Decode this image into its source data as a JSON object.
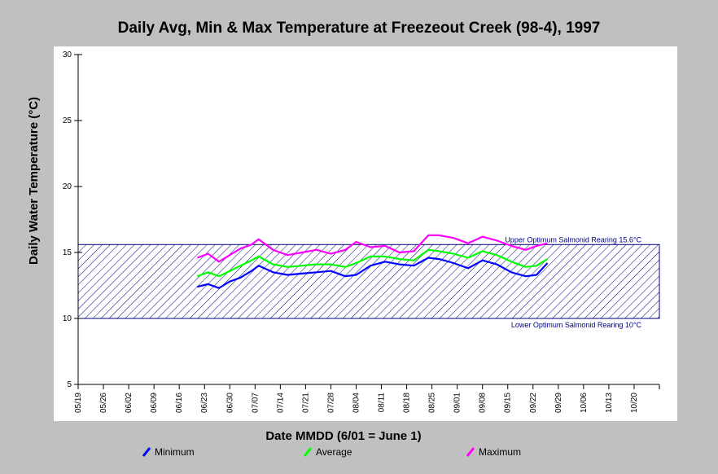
{
  "chart_data": {
    "type": "line",
    "title": "Daily Avg, Min & Max Temperature at Freezeout Creek (98-4), 1997",
    "xlabel": "Date MMDD (6/01 = June 1)",
    "ylabel": "Daily Water Temperature (°C)",
    "ylim": [
      5,
      30
    ],
    "yticks": [
      5,
      10,
      15,
      20,
      25,
      30
    ],
    "xlim": [
      "05/19",
      "10/27"
    ],
    "xticks": [
      "05/19",
      "05/26",
      "06/02",
      "06/09",
      "06/16",
      "06/23",
      "06/30",
      "07/07",
      "07/14",
      "07/21",
      "07/28",
      "08/04",
      "08/11",
      "08/18",
      "08/25",
      "09/01",
      "09/08",
      "09/15",
      "09/22",
      "09/29",
      "10/06",
      "10/13",
      "10/20"
    ],
    "legend_position": "bottom",
    "reference_band": {
      "upper": 15.6,
      "lower": 10,
      "upper_label": "Upper Optimum Salmonid Rearing 15.6°C",
      "lower_label": "Lower Optimum Salmonid Rearing 10°C",
      "color": "#000080"
    },
    "x": [
      "06/21",
      "06/24",
      "06/27",
      "06/30",
      "07/03",
      "07/06",
      "07/08",
      "07/12",
      "07/16",
      "07/20",
      "07/24",
      "07/28",
      "08/01",
      "08/04",
      "08/08",
      "08/12",
      "08/16",
      "08/20",
      "08/24",
      "08/27",
      "08/31",
      "09/04",
      "09/08",
      "09/12",
      "09/16",
      "09/20",
      "09/23",
      "09/26"
    ],
    "series": [
      {
        "name": "Minimum",
        "color": "#0000ff",
        "values": [
          12.4,
          12.6,
          12.3,
          12.8,
          13.1,
          13.6,
          14.0,
          13.5,
          13.3,
          13.4,
          13.5,
          13.6,
          13.2,
          13.3,
          14.0,
          14.3,
          14.1,
          14.0,
          14.6,
          14.5,
          14.2,
          13.8,
          14.4,
          14.1,
          13.5,
          13.2,
          13.3,
          14.2
        ]
      },
      {
        "name": "Average",
        "color": "#00ff00",
        "values": [
          13.2,
          13.5,
          13.2,
          13.6,
          14.0,
          14.4,
          14.7,
          14.1,
          13.9,
          14.0,
          14.1,
          14.1,
          13.9,
          14.2,
          14.7,
          14.7,
          14.5,
          14.4,
          15.2,
          15.1,
          14.9,
          14.6,
          15.1,
          14.8,
          14.3,
          13.9,
          14.0,
          14.5
        ]
      },
      {
        "name": "Maximum",
        "color": "#ff00ff",
        "values": [
          14.6,
          14.9,
          14.3,
          14.8,
          15.3,
          15.6,
          16.0,
          15.2,
          14.8,
          15.0,
          15.2,
          14.9,
          15.2,
          15.8,
          15.4,
          15.5,
          15.0,
          15.1,
          16.3,
          16.3,
          16.1,
          15.7,
          16.2,
          15.9,
          15.5,
          15.2,
          15.5,
          15.7
        ]
      }
    ]
  }
}
